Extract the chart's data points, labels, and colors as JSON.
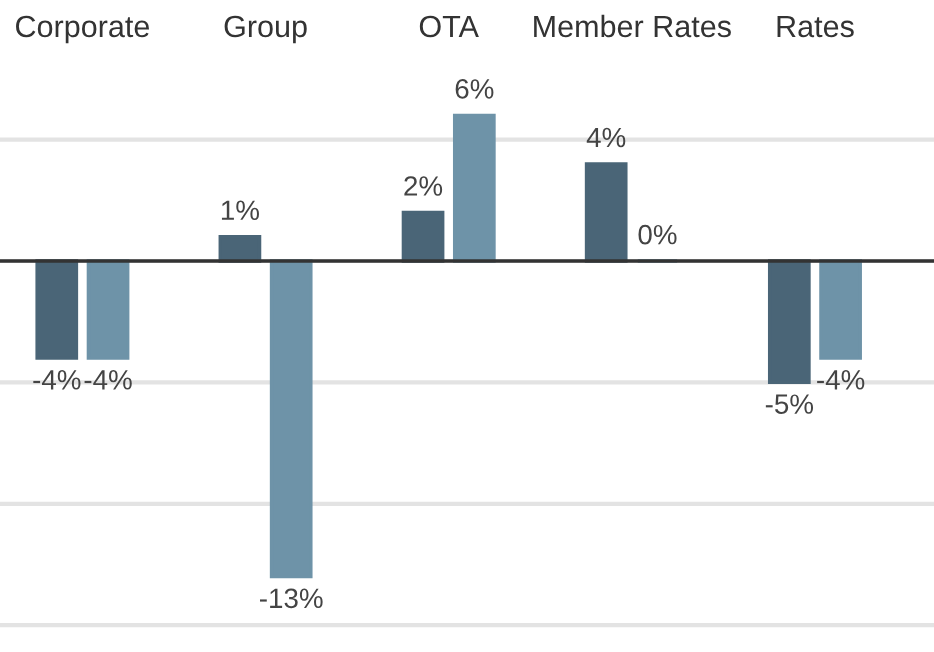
{
  "chart_data": {
    "type": "bar",
    "categories": [
      "Corporate",
      "Group",
      "OTA",
      "Member Rates",
      "Rates"
    ],
    "series": [
      {
        "color": "#4a6577",
        "values": [
          -4,
          1,
          2,
          4,
          -5
        ],
        "value_labels": [
          "-4%",
          "1%",
          "2%",
          "4%",
          "-5%"
        ]
      },
      {
        "color": "#6e93a8",
        "values": [
          -4,
          -13,
          6,
          0,
          -4
        ],
        "value_labels": [
          "-4%",
          "-13%",
          "6%",
          "0%",
          "-4%"
        ]
      }
    ],
    "tick_labels": "x",
    "grid": "y"
  }
}
